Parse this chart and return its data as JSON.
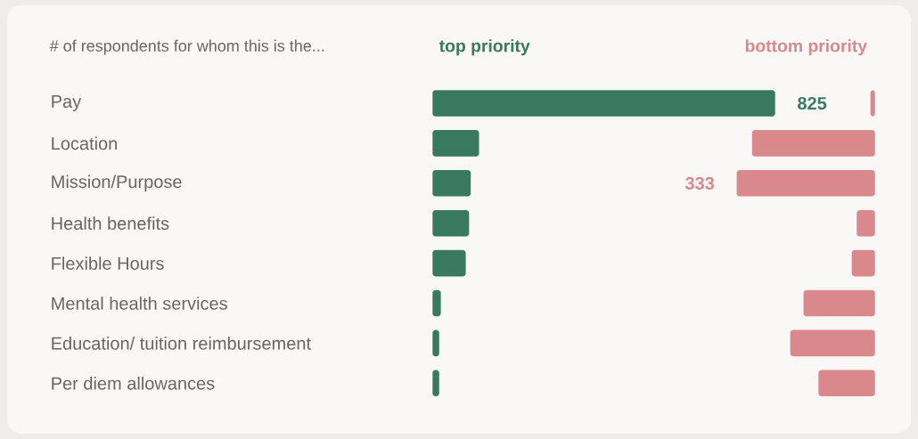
{
  "chart_data": [
    {
      "type": "bar",
      "orientation": "horizontal",
      "title": "# of respondents for whom this is the...",
      "categories": [
        "Pay",
        "Location",
        "Mission/Purpose",
        "Health benefits",
        "Flexible Hours",
        "Mental health services",
        "Education/ tuition reimbursement",
        "Per diem allowances"
      ],
      "tick_labels": "y",
      "series": [
        {
          "name": "top priority",
          "color": "#3a7961",
          "values": [
            825,
            112,
            92,
            88,
            80,
            20,
            16,
            16
          ],
          "value_labels": [
            "825",
            null,
            null,
            null,
            null,
            null,
            null,
            null
          ]
        }
      ]
    },
    {
      "type": "bar",
      "orientation": "horizontal",
      "categories": [
        null,
        null,
        null,
        null,
        null,
        null,
        null,
        null
      ],
      "tick_labels": false,
      "series": [
        {
          "name": "bottom priority",
          "color": "#d9898b",
          "values": [
            11,
            296,
            333,
            44,
            56,
            172,
            204,
            136
          ],
          "value_labels": [
            null,
            null,
            "333",
            null,
            null,
            null,
            null,
            null
          ]
        }
      ]
    }
  ]
}
